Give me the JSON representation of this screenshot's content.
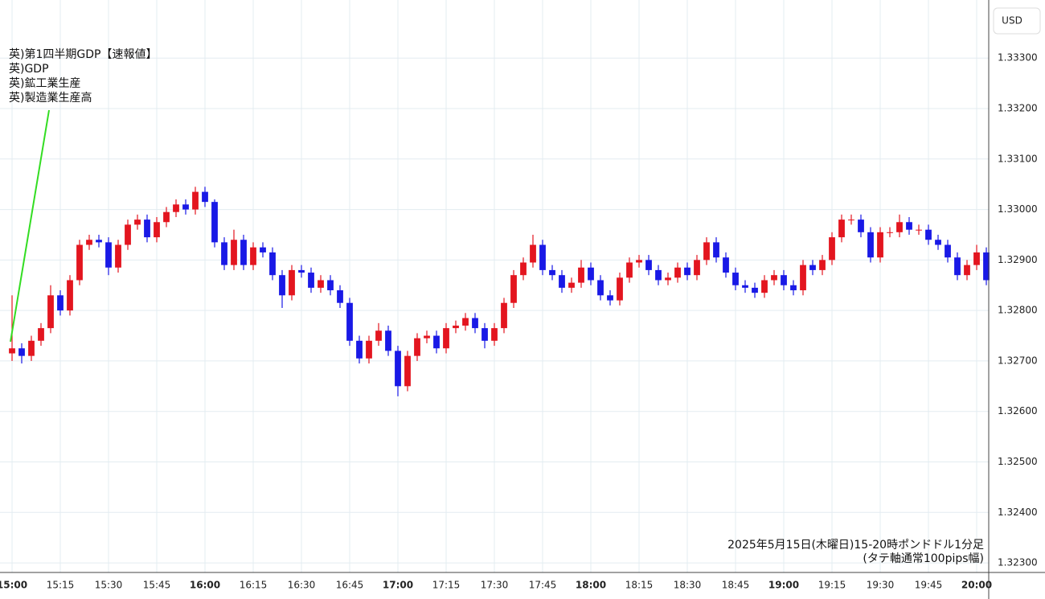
{
  "chart_data": {
    "type": "candlestick",
    "currency": "USD",
    "annotations": [
      "英)第1四半期GDP【速報値】",
      "英)GDP",
      "英)鉱工業生産",
      "英)製造業生産高"
    ],
    "caption": [
      "2025年5月15日(木曜日)15-20時ポンドドル1分足",
      "(タテ軸通常100pips幅)"
    ],
    "up_color": "#e3151f",
    "down_color": "#1919e6",
    "grid": true,
    "xlim": [
      -3.75,
      303.75
    ],
    "xticks": [
      {
        "value": 0,
        "label": "15:00"
      },
      {
        "value": 15,
        "label": "15:15"
      },
      {
        "value": 30,
        "label": "15:30"
      },
      {
        "value": 45,
        "label": "15:45"
      },
      {
        "value": 60,
        "label": "16:00"
      },
      {
        "value": 75,
        "label": "16:15"
      },
      {
        "value": 90,
        "label": "16:30"
      },
      {
        "value": 105,
        "label": "16:45"
      },
      {
        "value": 120,
        "label": "17:00"
      },
      {
        "value": 135,
        "label": "17:15"
      },
      {
        "value": 150,
        "label": "17:30"
      },
      {
        "value": 165,
        "label": "17:45"
      },
      {
        "value": 180,
        "label": "18:00"
      },
      {
        "value": 195,
        "label": "18:15"
      },
      {
        "value": 210,
        "label": "18:30"
      },
      {
        "value": 225,
        "label": "18:45"
      },
      {
        "value": 240,
        "label": "19:00"
      },
      {
        "value": 255,
        "label": "19:15"
      },
      {
        "value": 270,
        "label": "19:30"
      },
      {
        "value": 285,
        "label": "19:45"
      },
      {
        "value": 300,
        "label": "20:00"
      }
    ],
    "ylim": [
      1.32281,
      1.33415
    ],
    "yticks": [
      {
        "value": 1.323,
        "label": "1.32300"
      },
      {
        "value": 1.324,
        "label": "1.32400"
      },
      {
        "value": 1.325,
        "label": "1.32500"
      },
      {
        "value": 1.326,
        "label": "1.32600"
      },
      {
        "value": 1.327,
        "label": "1.32700"
      },
      {
        "value": 1.328,
        "label": "1.32800"
      },
      {
        "value": 1.329,
        "label": "1.32900"
      },
      {
        "value": 1.33,
        "label": "1.33000"
      },
      {
        "value": 1.331,
        "label": "1.33100"
      },
      {
        "value": 1.332,
        "label": "1.33200"
      },
      {
        "value": 1.333,
        "label": "1.33300"
      }
    ],
    "x": [
      0,
      3,
      6,
      9,
      12,
      15,
      18,
      21,
      24,
      27,
      30,
      33,
      36,
      39,
      42,
      45,
      48,
      51,
      54,
      57,
      60,
      63,
      66,
      69,
      72,
      75,
      78,
      81,
      84,
      87,
      90,
      93,
      96,
      99,
      102,
      105,
      108,
      111,
      114,
      117,
      120,
      123,
      126,
      129,
      132,
      135,
      138,
      141,
      144,
      147,
      150,
      153,
      156,
      159,
      162,
      165,
      168,
      171,
      174,
      177,
      180,
      183,
      186,
      189,
      192,
      195,
      198,
      201,
      204,
      207,
      210,
      213,
      216,
      219,
      222,
      225,
      228,
      231,
      234,
      237,
      240,
      243,
      246,
      249,
      252,
      255,
      258,
      261,
      264,
      267,
      270,
      273,
      276,
      279,
      282,
      285,
      288,
      291,
      294,
      297,
      300,
      303
    ],
    "open": [
      1.32715,
      1.32725,
      1.3271,
      1.3274,
      1.32765,
      1.3283,
      1.328,
      1.3286,
      1.3293,
      1.3294,
      1.32935,
      1.32885,
      1.3293,
      1.3297,
      1.3298,
      1.32945,
      1.32975,
      1.32995,
      1.3301,
      1.33,
      1.33035,
      1.33015,
      1.32935,
      1.3289,
      1.3294,
      1.3289,
      1.32925,
      1.32915,
      1.3287,
      1.3283,
      1.3288,
      1.32875,
      1.32845,
      1.3286,
      1.3284,
      1.32815,
      1.3274,
      1.32705,
      1.3274,
      1.3276,
      1.3272,
      1.3265,
      1.3271,
      1.32745,
      1.3275,
      1.32725,
      1.32765,
      1.3277,
      1.32785,
      1.32765,
      1.3274,
      1.32765,
      1.32815,
      1.3287,
      1.32895,
      1.3293,
      1.3288,
      1.3287,
      1.32845,
      1.32855,
      1.32885,
      1.3286,
      1.3283,
      1.3282,
      1.32865,
      1.32895,
      1.329,
      1.3288,
      1.3286,
      1.32865,
      1.32885,
      1.3287,
      1.329,
      1.32935,
      1.32905,
      1.32875,
      1.3285,
      1.32845,
      1.32835,
      1.3286,
      1.3287,
      1.3285,
      1.3284,
      1.3289,
      1.3288,
      1.329,
      1.32945,
      1.3298,
      1.3298,
      1.32955,
      1.32905,
      1.32955,
      1.32955,
      1.32975,
      1.3296,
      1.3296,
      1.3294,
      1.3293,
      1.32905,
      1.3287,
      1.3289,
      1.32915
    ],
    "high": [
      1.3283,
      1.32735,
      1.3275,
      1.32775,
      1.3285,
      1.3284,
      1.3287,
      1.3294,
      1.3295,
      1.3295,
      1.32945,
      1.3294,
      1.3298,
      1.3299,
      1.3299,
      1.32985,
      1.33005,
      1.3302,
      1.3302,
      1.33045,
      1.33045,
      1.3302,
      1.32945,
      1.3296,
      1.3295,
      1.32935,
      1.32935,
      1.32925,
      1.3288,
      1.3289,
      1.3289,
      1.32885,
      1.3287,
      1.3287,
      1.3285,
      1.32825,
      1.3275,
      1.3275,
      1.32775,
      1.3277,
      1.3273,
      1.3272,
      1.32755,
      1.3276,
      1.3276,
      1.32775,
      1.3278,
      1.32795,
      1.32795,
      1.32775,
      1.32775,
      1.32825,
      1.3288,
      1.32905,
      1.3295,
      1.3294,
      1.3289,
      1.3288,
      1.32865,
      1.329,
      1.32895,
      1.3287,
      1.3284,
      1.32875,
      1.32905,
      1.3291,
      1.3291,
      1.3289,
      1.32875,
      1.32895,
      1.32895,
      1.3291,
      1.32945,
      1.32945,
      1.32915,
      1.32885,
      1.3286,
      1.32855,
      1.3287,
      1.3288,
      1.3288,
      1.3286,
      1.329,
      1.329,
      1.3291,
      1.32955,
      1.3299,
      1.3299,
      1.3299,
      1.32965,
      1.32965,
      1.32965,
      1.3299,
      1.32985,
      1.3297,
      1.3297,
      1.3295,
      1.3294,
      1.32915,
      1.329,
      1.3293,
      1.32925
    ],
    "low": [
      1.327,
      1.32695,
      1.327,
      1.3273,
      1.32755,
      1.3279,
      1.3279,
      1.3285,
      1.3292,
      1.32925,
      1.3287,
      1.32875,
      1.3292,
      1.3296,
      1.32935,
      1.32935,
      1.32965,
      1.32985,
      1.3299,
      1.3299,
      1.33005,
      1.32925,
      1.3288,
      1.3288,
      1.3288,
      1.3288,
      1.32905,
      1.3286,
      1.32805,
      1.3282,
      1.32865,
      1.32835,
      1.32835,
      1.3283,
      1.32805,
      1.3273,
      1.32695,
      1.32695,
      1.3273,
      1.3271,
      1.3263,
      1.3264,
      1.327,
      1.32735,
      1.32715,
      1.32715,
      1.32755,
      1.3276,
      1.32755,
      1.32725,
      1.3273,
      1.32755,
      1.32805,
      1.3286,
      1.32885,
      1.3287,
      1.3286,
      1.32835,
      1.32835,
      1.32845,
      1.3285,
      1.3282,
      1.3281,
      1.3281,
      1.32855,
      1.32885,
      1.3287,
      1.3285,
      1.3285,
      1.32855,
      1.3286,
      1.3286,
      1.3289,
      1.32895,
      1.32865,
      1.3284,
      1.32835,
      1.32825,
      1.32825,
      1.3285,
      1.3284,
      1.3283,
      1.3283,
      1.3287,
      1.3287,
      1.3289,
      1.32935,
      1.3297,
      1.32945,
      1.32895,
      1.32895,
      1.32945,
      1.32945,
      1.3295,
      1.3295,
      1.3293,
      1.3292,
      1.32895,
      1.3286,
      1.3286,
      1.3288,
      1.3285
    ],
    "close": [
      1.32725,
      1.3271,
      1.3274,
      1.32765,
      1.3283,
      1.328,
      1.3286,
      1.3293,
      1.3294,
      1.32935,
      1.32885,
      1.3293,
      1.3297,
      1.3298,
      1.32945,
      1.32975,
      1.32995,
      1.3301,
      1.33,
      1.33035,
      1.33015,
      1.32935,
      1.3289,
      1.3294,
      1.3289,
      1.32925,
      1.32915,
      1.3287,
      1.3283,
      1.3288,
      1.32875,
      1.32845,
      1.3286,
      1.3284,
      1.32815,
      1.3274,
      1.32705,
      1.3274,
      1.3276,
      1.3272,
      1.3265,
      1.3271,
      1.32745,
      1.3275,
      1.32725,
      1.32765,
      1.3277,
      1.32785,
      1.32765,
      1.3274,
      1.32765,
      1.32815,
      1.3287,
      1.32895,
      1.3293,
      1.3288,
      1.3287,
      1.32845,
      1.32855,
      1.32885,
      1.3286,
      1.3283,
      1.3282,
      1.32865,
      1.32895,
      1.329,
      1.3288,
      1.3286,
      1.32865,
      1.32885,
      1.3287,
      1.329,
      1.32935,
      1.32905,
      1.32875,
      1.3285,
      1.32845,
      1.32835,
      1.3286,
      1.3287,
      1.3285,
      1.3284,
      1.3289,
      1.3288,
      1.329,
      1.32945,
      1.3298,
      1.3298,
      1.32955,
      1.32905,
      1.32955,
      1.32955,
      1.32975,
      1.3296,
      1.3296,
      1.3294,
      1.3293,
      1.32905,
      1.3287,
      1.3289,
      1.32915,
      1.3286
    ]
  }
}
